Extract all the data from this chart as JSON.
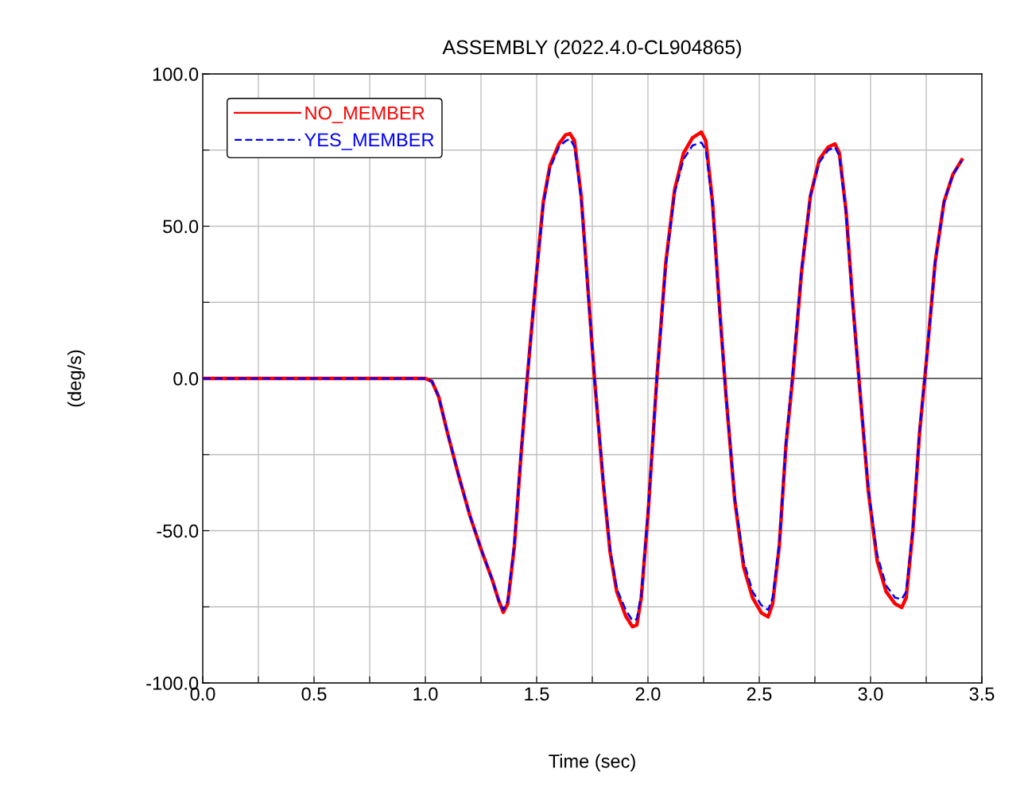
{
  "chart_data": {
    "type": "line",
    "title": "ASSEMBLY (2022.4.0-CL904865)",
    "xlabel": "Time (sec)",
    "ylabel": "(deg/s)",
    "xlim": [
      0,
      3.5
    ],
    "ylim": [
      -100,
      100
    ],
    "xticks": [
      {
        "value": 0,
        "label": "0.0"
      },
      {
        "value": 0.25,
        "label": null
      },
      {
        "value": 0.5,
        "label": "0.5"
      },
      {
        "value": 0.75,
        "label": null
      },
      {
        "value": 1,
        "label": "1.0"
      },
      {
        "value": 1.25,
        "label": null
      },
      {
        "value": 1.5,
        "label": "1.5"
      },
      {
        "value": 1.75,
        "label": null
      },
      {
        "value": 2,
        "label": "2.0"
      },
      {
        "value": 2.25,
        "label": null
      },
      {
        "value": 2.5,
        "label": "2.5"
      },
      {
        "value": 2.75,
        "label": null
      },
      {
        "value": 3,
        "label": "3.0"
      },
      {
        "value": 3.25,
        "label": null
      },
      {
        "value": 3.5,
        "label": "3.5"
      }
    ],
    "yticks": [
      {
        "value": -100,
        "label": "-100.0"
      },
      {
        "value": -75,
        "label": null
      },
      {
        "value": -50,
        "label": "-50.0"
      },
      {
        "value": -25,
        "label": null
      },
      {
        "value": 0,
        "label": "0.0"
      },
      {
        "value": 25,
        "label": null
      },
      {
        "value": 50,
        "label": "50.0"
      },
      {
        "value": 75,
        "label": null
      },
      {
        "value": 100,
        "label": "100.0"
      }
    ],
    "grid": true,
    "legend": "top left",
    "marker": "none",
    "ref_lines": [
      {
        "axis": "y",
        "value": 0,
        "label": null,
        "color": "#000000"
      }
    ],
    "x": [
      0,
      1.0,
      1.03,
      1.06,
      1.1,
      1.15,
      1.2,
      1.25,
      1.3,
      1.33,
      1.35,
      1.37,
      1.4,
      1.43,
      1.46,
      1.5,
      1.53,
      1.56,
      1.6,
      1.63,
      1.65,
      1.67,
      1.7,
      1.73,
      1.76,
      1.8,
      1.83,
      1.86,
      1.9,
      1.93,
      1.95,
      1.97,
      2.0,
      2.04,
      2.08,
      2.12,
      2.16,
      2.2,
      2.24,
      2.26,
      2.29,
      2.32,
      2.35,
      2.39,
      2.43,
      2.47,
      2.51,
      2.54,
      2.56,
      2.59,
      2.62,
      2.65,
      2.69,
      2.73,
      2.77,
      2.81,
      2.84,
      2.86,
      2.89,
      2.92,
      2.95,
      2.99,
      3.03,
      3.07,
      3.11,
      3.14,
      3.16,
      3.19,
      3.22,
      3.25,
      3.29,
      3.33,
      3.37,
      3.41
    ],
    "series": [
      {
        "name": "NO_MEMBER",
        "color": "#ff0000",
        "line_style": "solid",
        "values": [
          0,
          0,
          -1,
          -6,
          -18,
          -32,
          -45,
          -56,
          -66,
          -73,
          -76.8,
          -74,
          -55,
          -25,
          2,
          35,
          58,
          70,
          77,
          80,
          80.4,
          78,
          60,
          30,
          0,
          -35,
          -57,
          -70,
          -78,
          -81.5,
          -81,
          -72,
          -45,
          0,
          38,
          62,
          74,
          79,
          80.9,
          78,
          58,
          25,
          -5,
          -40,
          -62,
          -72,
          -77,
          -78.3,
          -74,
          -55,
          -22,
          0,
          35,
          60,
          72,
          76,
          77,
          74,
          55,
          25,
          -2,
          -37,
          -60,
          -70,
          -74,
          -75.2,
          -72,
          -50,
          -18,
          5,
          38,
          58,
          67,
          71.8
        ]
      },
      {
        "name": "YES_MEMBER",
        "color": "#0000ff",
        "line_style": "dashed",
        "values": [
          0,
          0,
          -1,
          -6,
          -18,
          -32,
          -45,
          -56,
          -66,
          -73,
          -76,
          -73,
          -54,
          -24,
          2,
          35,
          57,
          69,
          76,
          78,
          78.7,
          76,
          59,
          29,
          0,
          -34,
          -56,
          -69,
          -76,
          -79.5,
          -79,
          -71,
          -44,
          0,
          37,
          61,
          72,
          76.5,
          77.5,
          75,
          57,
          24,
          -5,
          -39,
          -60,
          -70,
          -74.5,
          -76,
          -72,
          -54,
          -21,
          2,
          36,
          60,
          71,
          75,
          76,
          73,
          54,
          24,
          -2,
          -36,
          -58,
          -68,
          -72,
          -72.5,
          -70,
          -49,
          -17,
          5,
          38,
          58,
          67,
          71.5
        ]
      }
    ]
  }
}
